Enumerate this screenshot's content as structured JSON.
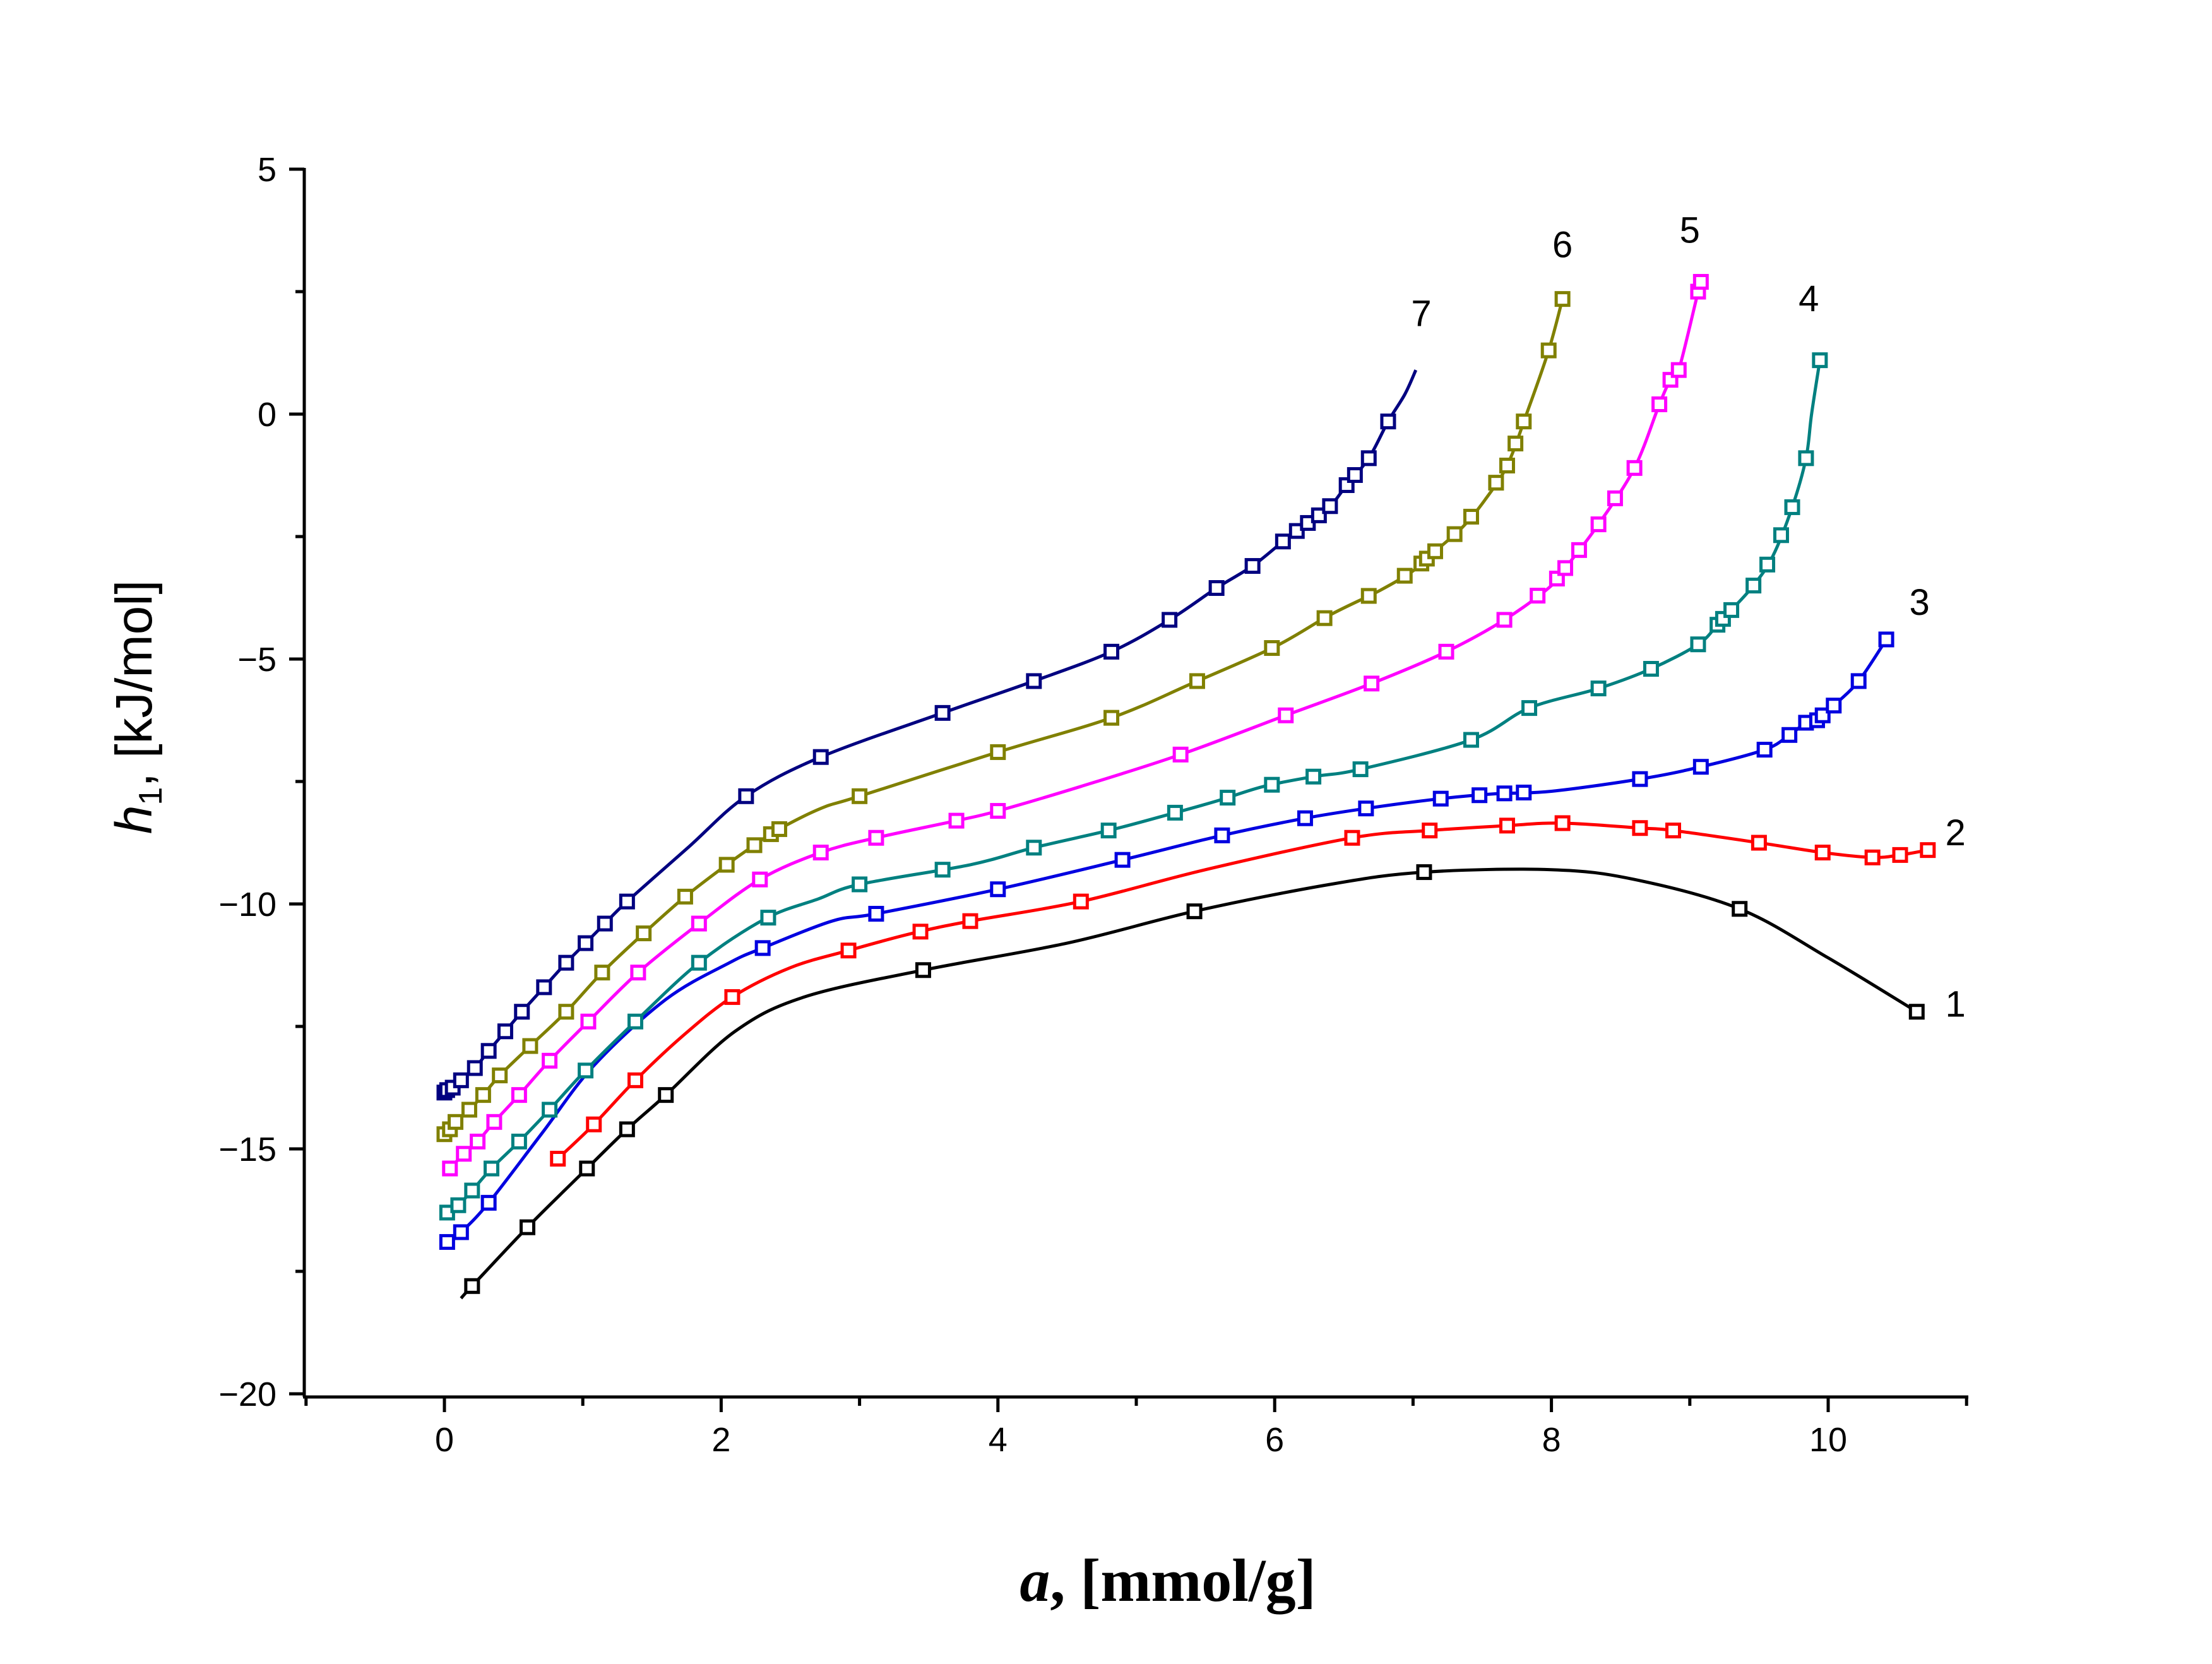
{
  "chart_data": {
    "type": "line",
    "title": "",
    "xlabel": {
      "var": "a",
      "unit": ", [mmol/g]"
    },
    "ylabel": {
      "var": "h",
      "sub": "1",
      "unit": ", [kJ/mol]"
    },
    "xlim": [
      -1,
      11
    ],
    "ylim": [
      -20,
      5
    ],
    "xticks": [
      0,
      2,
      4,
      6,
      8,
      10
    ],
    "yticks": [
      5,
      0,
      -5,
      -10,
      -15,
      -20
    ],
    "ytick_labels": [
      "5",
      "0",
      "−5",
      "−10",
      "−15",
      "−20"
    ],
    "grid": false,
    "series": [
      {
        "name": "1",
        "color": "#000000",
        "x": [
          0.12,
          0.2,
          0.6,
          1.03,
          1.32,
          1.6,
          2.1,
          2.6,
          3.46,
          4.5,
          5.42,
          6.4,
          7.08,
          8.0,
          8.6,
          9.36,
          10.0,
          10.64
        ],
        "y": [
          -18.05,
          -17.8,
          -16.6,
          -15.4,
          -14.6,
          -13.9,
          -12.6,
          -11.9,
          -11.35,
          -10.8,
          -10.15,
          -9.6,
          -9.35,
          -9.3,
          -9.5,
          -10.1,
          -11.1,
          -12.2
        ],
        "markers": [
          0.2,
          0.6,
          1.03,
          1.32,
          1.6,
          3.46,
          5.42,
          7.08,
          9.36,
          10.64
        ]
      },
      {
        "name": "2",
        "color": "#ff0000",
        "x": [
          0.82,
          1.08,
          1.38,
          1.72,
          2.08,
          2.5,
          2.92,
          3.38,
          3.8,
          4.6,
          5.5,
          6.56,
          7.12,
          7.68,
          8.08,
          8.64,
          8.88,
          9.5,
          9.96,
          10.32,
          10.52,
          10.72
        ],
        "y": [
          -15.2,
          -14.5,
          -13.6,
          -12.7,
          -11.9,
          -11.3,
          -10.95,
          -10.6,
          -10.35,
          -9.95,
          -9.3,
          -8.65,
          -8.5,
          -8.4,
          -8.35,
          -8.45,
          -8.5,
          -8.75,
          -8.95,
          -9.05,
          -9.0,
          -8.9
        ],
        "markers": [
          0.82,
          1.08,
          1.38,
          2.08,
          2.92,
          3.44,
          3.8,
          4.6,
          6.56,
          7.12,
          7.68,
          8.08,
          8.64,
          8.88,
          9.5,
          9.96,
          10.32,
          10.52,
          10.72
        ]
      },
      {
        "name": "3",
        "color": "#0000e0",
        "x": [
          0.02,
          0.12,
          0.32,
          0.7,
          1.08,
          1.6,
          2.06,
          2.3,
          2.8,
          3.12,
          4.0,
          4.9,
          5.62,
          6.22,
          6.66,
          7.2,
          7.6,
          8.0,
          8.64,
          9.08,
          9.54,
          9.72,
          9.84,
          9.92,
          9.96,
          10.04,
          10.22,
          10.42
        ],
        "y": [
          -16.9,
          -16.7,
          -16.1,
          -14.7,
          -13.3,
          -11.95,
          -11.2,
          -10.9,
          -10.35,
          -10.2,
          -9.7,
          -9.1,
          -8.6,
          -8.25,
          -8.05,
          -7.85,
          -7.75,
          -7.7,
          -7.45,
          -7.2,
          -6.85,
          -6.55,
          -6.3,
          -6.25,
          -6.15,
          -5.95,
          -5.45,
          -4.6
        ],
        "markers": [
          0.02,
          0.12,
          0.32,
          2.3,
          3.12,
          4.0,
          4.9,
          5.62,
          6.22,
          6.66,
          7.2,
          7.48,
          7.66,
          7.8,
          8.64,
          9.08,
          9.54,
          9.72,
          9.84,
          9.92,
          9.96,
          10.04,
          10.22,
          10.42
        ]
      },
      {
        "name": "4",
        "color": "#008080",
        "x": [
          0.02,
          0.1,
          0.2,
          0.34,
          0.54,
          0.76,
          1.02,
          1.38,
          1.84,
          2.32,
          2.7,
          3.0,
          3.8,
          4.26,
          4.8,
          5.2,
          5.58,
          5.92,
          6.28,
          6.62,
          7.42,
          7.84,
          8.34,
          8.72,
          9.06,
          9.2,
          9.3,
          9.46,
          9.6,
          9.74,
          9.84,
          9.88,
          9.94
        ],
        "y": [
          -16.3,
          -16.15,
          -15.85,
          -15.4,
          -14.85,
          -14.2,
          -13.4,
          -12.4,
          -11.2,
          -10.3,
          -9.9,
          -9.6,
          -9.2,
          -8.85,
          -8.5,
          -8.2,
          -7.9,
          -7.6,
          -7.4,
          -7.25,
          -6.65,
          -6.0,
          -5.6,
          -5.2,
          -4.7,
          -4.3,
          -4.0,
          -3.5,
          -2.9,
          -1.9,
          -0.9,
          0.0,
          1.1
        ],
        "markers": [
          0.02,
          0.1,
          0.2,
          0.34,
          0.54,
          0.76,
          1.02,
          1.38,
          1.84,
          2.34,
          3.0,
          3.6,
          4.26,
          4.8,
          5.28,
          5.66,
          5.98,
          6.28,
          6.62,
          7.42,
          7.84,
          8.34,
          8.72,
          9.06,
          9.2,
          9.24,
          9.3,
          9.46,
          9.56,
          9.66,
          9.74,
          9.84,
          9.94
        ]
      },
      {
        "name": "5",
        "color": "#ff00ff",
        "x": [
          0.04,
          0.14,
          0.24,
          0.36,
          0.54,
          0.76,
          1.04,
          1.4,
          1.84,
          2.28,
          2.72,
          3.12,
          3.7,
          4.0,
          4.6,
          5.32,
          6.08,
          6.7,
          7.24,
          7.66,
          8.0,
          8.14,
          8.34,
          8.6,
          8.78,
          8.86,
          8.92,
          9.06,
          9.08
        ],
        "y": [
          -15.4,
          -15.1,
          -14.85,
          -14.45,
          -13.9,
          -13.2,
          -12.4,
          -11.4,
          -10.4,
          -9.5,
          -8.95,
          -8.65,
          -8.3,
          -8.1,
          -7.6,
          -6.95,
          -6.15,
          -5.5,
          -4.85,
          -4.2,
          -3.5,
          -3.0,
          -2.25,
          -1.1,
          0.2,
          0.7,
          0.9,
          2.5,
          2.7
        ],
        "markers": [
          0.04,
          0.14,
          0.24,
          0.36,
          0.54,
          0.76,
          1.04,
          1.4,
          1.84,
          2.28,
          2.72,
          3.12,
          3.7,
          4.0,
          5.32,
          6.08,
          6.7,
          7.24,
          7.66,
          7.9,
          8.04,
          8.1,
          8.2,
          8.34,
          8.46,
          8.6,
          8.78,
          8.86,
          8.92,
          9.06,
          9.08
        ]
      },
      {
        "name": "6",
        "color": "#808000",
        "x": [
          0.0,
          0.04,
          0.08,
          0.18,
          0.28,
          0.4,
          0.62,
          0.88,
          1.14,
          1.44,
          1.74,
          2.04,
          2.24,
          2.4,
          2.72,
          3.0,
          4.0,
          4.82,
          5.4,
          6.0,
          6.4,
          6.76,
          7.0,
          7.16,
          7.36,
          7.52,
          7.68,
          7.82,
          7.98,
          8.08
        ],
        "y": [
          -14.7,
          -14.6,
          -14.45,
          -14.2,
          -13.9,
          -13.5,
          -12.9,
          -12.2,
          -11.4,
          -10.6,
          -9.85,
          -9.2,
          -8.8,
          -8.5,
          -8.05,
          -7.8,
          -6.9,
          -6.2,
          -5.5,
          -4.75,
          -4.1,
          -3.6,
          -3.2,
          -2.8,
          -2.3,
          -1.75,
          -1.05,
          0.0,
          1.3,
          2.35
        ],
        "markers": [
          0.0,
          0.04,
          0.08,
          0.18,
          0.28,
          0.4,
          0.62,
          0.88,
          1.14,
          1.44,
          1.74,
          2.04,
          2.24,
          2.36,
          2.42,
          3.0,
          4.0,
          4.82,
          5.44,
          5.98,
          6.36,
          6.68,
          6.94,
          7.06,
          7.1,
          7.16,
          7.3,
          7.42,
          7.6,
          7.68,
          7.74,
          7.8,
          7.98,
          8.08
        ]
      },
      {
        "name": "7",
        "color": "#000080",
        "x": [
          0.0,
          0.02,
          0.06,
          0.12,
          0.22,
          0.32,
          0.44,
          0.56,
          0.72,
          0.88,
          1.02,
          1.16,
          1.32,
          1.76,
          2.18,
          2.72,
          3.6,
          4.26,
          4.82,
          5.24,
          5.58,
          5.84,
          6.06,
          6.2,
          6.38,
          6.52,
          6.68,
          6.82,
          6.94,
          7.02
        ],
        "y": [
          -13.85,
          -13.8,
          -13.75,
          -13.6,
          -13.35,
          -13.0,
          -12.6,
          -12.2,
          -11.7,
          -11.2,
          -10.8,
          -10.4,
          -9.95,
          -8.85,
          -7.8,
          -7.0,
          -6.1,
          -5.45,
          -4.85,
          -4.2,
          -3.55,
          -3.1,
          -2.6,
          -2.3,
          -1.95,
          -1.45,
          -0.9,
          -0.15,
          0.4,
          0.9
        ],
        "markers": [
          0.0,
          0.02,
          0.06,
          0.12,
          0.22,
          0.32,
          0.44,
          0.56,
          0.72,
          0.88,
          1.02,
          1.16,
          1.32,
          2.18,
          2.72,
          3.6,
          4.26,
          4.82,
          5.24,
          5.58,
          5.84,
          6.06,
          6.16,
          6.24,
          6.32,
          6.4,
          6.52,
          6.58,
          6.68,
          6.82
        ]
      }
    ],
    "curve_labels": [
      {
        "series": "1",
        "text": "1",
        "x": 10.92,
        "y": -12.3
      },
      {
        "series": "2",
        "text": "2",
        "x": 10.92,
        "y": -8.8
      },
      {
        "series": "3",
        "text": "3",
        "x": 10.66,
        "y": -4.1
      },
      {
        "series": "4",
        "text": "4",
        "x": 9.86,
        "y": 2.1
      },
      {
        "series": "5",
        "text": "5",
        "x": 9.0,
        "y": 3.5
      },
      {
        "series": "6",
        "text": "6",
        "x": 8.08,
        "y": 3.2
      },
      {
        "series": "7",
        "text": "7",
        "x": 7.06,
        "y": 1.8
      }
    ]
  }
}
